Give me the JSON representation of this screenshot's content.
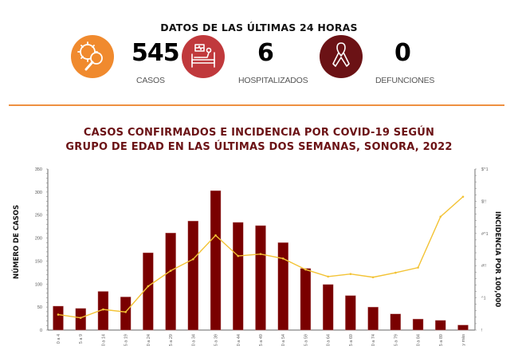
{
  "header": {
    "title": "DATOS DE LAS ÚLTIMAS 24 HORAS"
  },
  "stats": [
    {
      "icon": "virus-search-icon",
      "value": "545",
      "label": "CASOS",
      "color": "#f08a2e"
    },
    {
      "icon": "hospital-bed-icon",
      "value": "6",
      "label": "HOSPITALIZADOS",
      "color": "#c0393c"
    },
    {
      "icon": "awareness-ribbon-icon",
      "value": "0",
      "label": "DEFUNCIONES",
      "color": "#6b1215"
    }
  ],
  "colors": {
    "divider": "#ee9040",
    "title": "#6b1215",
    "bar": "#7a0000",
    "line": "#f3c335",
    "axis": "#888888"
  },
  "chart_title": {
    "line1": "CASOS CONFIRMADOS E INCIDENCIA POR COVID-19 SEGÚN",
    "line2": "GRUPO DE EDAD EN LAS ÚLTIMAS DOS SEMANAS, SONORA, 2022"
  },
  "chart_data": {
    "type": "bar",
    "title": "CASOS CONFIRMADOS E INCIDENCIA POR COVID-19 SEGÚN GRUPO DE EDAD EN LAS ÚLTIMAS DOS SEMANAS, SONORA, 2022",
    "xlabel": "",
    "ylabel": "NÚMERO DE CASOS",
    "y2label": "INCIDENCIA POR 100,000",
    "ylim": [
      0,
      350
    ],
    "y2lim": [
      0,
      250
    ],
    "yticks": [
      "0",
      "50",
      "100",
      "150",
      "200",
      "250",
      "300",
      "350"
    ],
    "y2ticks_rendered": [
      "!",
      "^1",
      "#!!",
      "#^1",
      "$!!",
      "$^1"
    ],
    "grid": false,
    "legend": "none",
    "categories": [
      "0 a 4",
      "5 a 9",
      "10 a 14",
      "15 a 19",
      "20 a 24",
      "25 a 29",
      "30 a 34",
      "35 a 39",
      "40 a 44",
      "45 a 49",
      "50 a 54",
      "55 a 59",
      "60 a 64",
      "65 a 69",
      "70 a 74",
      "75 a 79",
      "80 a 84",
      "85 a 89",
      "90 y más"
    ],
    "series": [
      {
        "name": "Casos",
        "type": "bar",
        "axis": "left",
        "values": [
          52,
          47,
          84,
          72,
          168,
          211,
          237,
          303,
          234,
          227,
          190,
          134,
          99,
          75,
          50,
          35,
          24,
          21,
          11
        ]
      },
      {
        "name": "Incidencia por 100,000",
        "type": "line",
        "axis": "right",
        "values": [
          24,
          19,
          32,
          28,
          68,
          92,
          110,
          147,
          115,
          118,
          111,
          94,
          83,
          87,
          82,
          89,
          97,
          176,
          207
        ]
      }
    ]
  }
}
